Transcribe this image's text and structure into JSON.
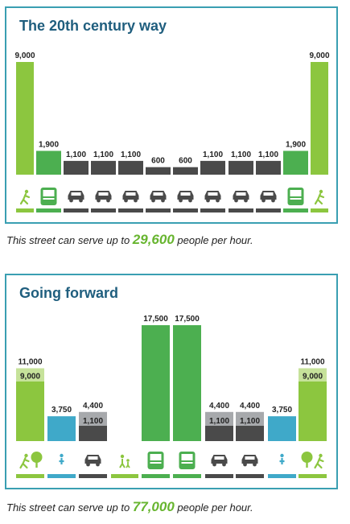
{
  "colors": {
    "border": "#3a9fb2",
    "title": "#1f5e7e",
    "ped": "#8cc63f",
    "bus": "#4caf50",
    "car": "#4a4a4a",
    "lightcar": "#a7a9ac",
    "bike": "#3fa9c9",
    "highlight": "#67b52f"
  },
  "panels": [
    {
      "title": "The 20th century way",
      "caption": {
        "prefix": "This street can serve up to ",
        "highlight": "29,600",
        "suffix": " people per hour."
      }
    },
    {
      "title": "Going forward",
      "caption": {
        "prefix": "This street can serve up to ",
        "highlight": "77,000",
        "suffix": " people per hour."
      }
    }
  ],
  "chart_data": [
    {
      "type": "bar",
      "title": "The 20th century way",
      "categories": [
        "sidewalk",
        "bus lane",
        "car lane",
        "car lane",
        "car lane",
        "car lane",
        "car lane",
        "car lane",
        "car lane",
        "car lane",
        "bus lane",
        "sidewalk"
      ],
      "modes": [
        "pedestrian",
        "bus",
        "car",
        "car",
        "car",
        "car",
        "car",
        "car",
        "car",
        "car",
        "bus",
        "pedestrian"
      ],
      "values": [
        9000,
        1900,
        1100,
        1100,
        1100,
        600,
        600,
        1100,
        1100,
        1100,
        1900,
        9000
      ],
      "labels": [
        "9,000",
        "1,900",
        "1,100",
        "1,100",
        "1,100",
        "600",
        "600",
        "1,100",
        "1,100",
        "1,100",
        "1,900",
        "9,000"
      ]
    },
    {
      "type": "bar",
      "title": "Going forward",
      "categories": [
        "sidewalk",
        "bike lane",
        "car lane",
        "sidewalk",
        "bus lane",
        "bus lane",
        "car lane",
        "car lane",
        "bike lane",
        "sidewalk"
      ],
      "modes": [
        "pedestrian",
        "bike",
        "car",
        "pedestrian",
        "bus",
        "bus",
        "car",
        "car",
        "bike",
        "pedestrian"
      ],
      "values": [
        11000,
        3750,
        4400,
        null,
        17500,
        17500,
        4400,
        4400,
        3750,
        11000
      ],
      "labels": [
        "11,000",
        "3,750",
        "4,400",
        "",
        "17,500",
        "17,500",
        "4,400",
        "4,400",
        "3,750",
        "11,000"
      ],
      "previous_values": [
        9000,
        null,
        1100,
        null,
        null,
        null,
        1100,
        1100,
        null,
        9000
      ],
      "previous_labels": [
        "9,000",
        "",
        "1,100",
        "",
        "",
        "",
        "1,100",
        "1,100",
        "",
        "9,000"
      ]
    }
  ]
}
